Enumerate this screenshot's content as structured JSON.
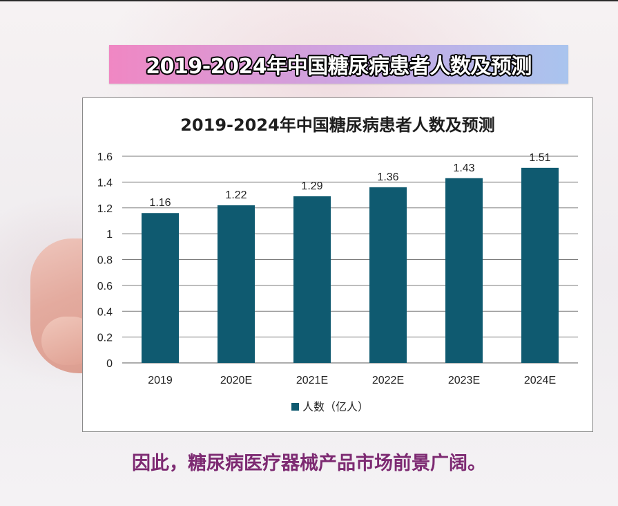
{
  "banner": {
    "title": "2019-2024年中国糖尿病患者人数及预测"
  },
  "caption": "因此，糖尿病医疗器械产品市场前景广阔。",
  "colors": {
    "bar": "#0f5a70",
    "grid": "#7a7a7a",
    "caption": "#7d2a72"
  },
  "chart_data": {
    "type": "bar",
    "title": "2019-2024年中国糖尿病患者人数及预测",
    "categories": [
      "2019",
      "2020E",
      "2021E",
      "2022E",
      "2023E",
      "2024E"
    ],
    "series": [
      {
        "name": "人数（亿人）",
        "values": [
          1.16,
          1.22,
          1.29,
          1.36,
          1.43,
          1.51
        ]
      }
    ],
    "data_labels": [
      "1.16",
      "1.22",
      "1.29",
      "1.36",
      "1.43",
      "1.51"
    ],
    "y_ticks": [
      "0",
      "0.2",
      "0.4",
      "0.6",
      "0.8",
      "1",
      "1.2",
      "1.4",
      "1.6"
    ],
    "ylim": [
      0,
      1.6
    ],
    "xlabel": "",
    "ylabel": "",
    "grid": true,
    "legend": "bottom"
  }
}
